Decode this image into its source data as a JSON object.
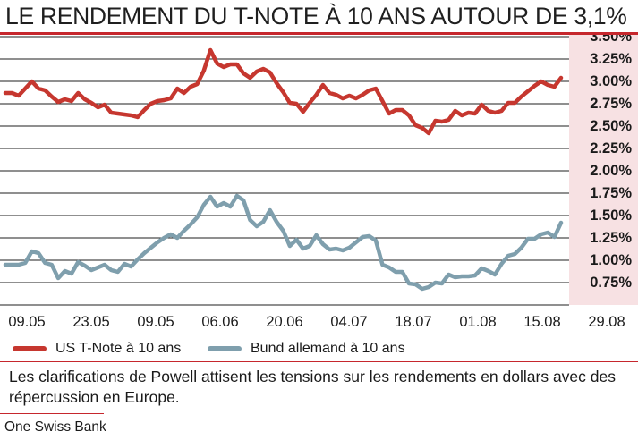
{
  "title": "LE RENDEMENT DU T-NOTE À 10 ANS AUTOUR DE 3,1%",
  "caption": "Les clarifications de Powell attisent les tensions sur les rendements en dollars avec des répercussion en Europe.",
  "source": "One Swiss Bank",
  "colors": {
    "accent": "#c6272d",
    "us": "#c6372f",
    "bund": "#7f9fad",
    "axis_band": "#f7e1e3"
  },
  "chart_data": {
    "type": "line",
    "ylim": [
      0.5,
      3.7
    ],
    "y_ticks": [
      0.75,
      1.0,
      1.25,
      1.5,
      1.75,
      2.0,
      2.25,
      2.5,
      2.75,
      3.0,
      3.25,
      3.5
    ],
    "y_tick_labels": [
      "0.75%",
      "1.00%",
      "1.25%",
      "1.50%",
      "1.75%",
      "2.00%",
      "2.25%",
      "2.50%",
      "2.75%",
      "3.00%",
      "3.25%",
      "3.50%"
    ],
    "grid": true,
    "legend_position": "bottom-left",
    "x_tick_labels": [
      "09.05",
      "23.05",
      "09.05",
      "06.06",
      "20.06",
      "04.07",
      "18.07",
      "01.08",
      "15.08",
      "29.08"
    ],
    "series": [
      {
        "name": "US T-Note à 10 ans",
        "values": [
          2.87,
          2.87,
          2.84,
          2.92,
          3.0,
          2.92,
          2.9,
          2.83,
          2.77,
          2.8,
          2.78,
          2.87,
          2.8,
          2.76,
          2.71,
          2.74,
          2.65,
          2.64,
          2.63,
          2.62,
          2.6,
          2.68,
          2.75,
          2.78,
          2.79,
          2.81,
          2.92,
          2.87,
          2.94,
          2.97,
          3.12,
          3.35,
          3.2,
          3.16,
          3.19,
          3.19,
          3.09,
          3.04,
          3.11,
          3.14,
          3.1,
          2.98,
          2.88,
          2.76,
          2.75,
          2.66,
          2.76,
          2.85,
          2.96,
          2.87,
          2.85,
          2.81,
          2.84,
          2.81,
          2.85,
          2.9,
          2.92,
          2.78,
          2.64,
          2.68,
          2.68,
          2.62,
          2.51,
          2.48,
          2.42,
          2.56,
          2.55,
          2.57,
          2.67,
          2.62,
          2.65,
          2.64,
          2.74,
          2.67,
          2.65,
          2.67,
          2.76,
          2.76,
          2.83,
          2.89,
          2.95,
          3.0,
          2.96,
          2.94,
          3.04
        ]
      },
      {
        "name": "Bund allemand à 10 ans",
        "values": [
          0.95,
          0.95,
          0.95,
          0.97,
          1.1,
          1.08,
          0.97,
          0.95,
          0.8,
          0.88,
          0.85,
          0.98,
          0.94,
          0.89,
          0.92,
          0.95,
          0.89,
          0.87,
          0.96,
          0.93,
          1.01,
          1.08,
          1.14,
          1.2,
          1.25,
          1.29,
          1.25,
          1.33,
          1.4,
          1.48,
          1.62,
          1.71,
          1.6,
          1.64,
          1.6,
          1.72,
          1.67,
          1.45,
          1.38,
          1.43,
          1.56,
          1.43,
          1.33,
          1.16,
          1.23,
          1.13,
          1.16,
          1.28,
          1.18,
          1.12,
          1.13,
          1.11,
          1.14,
          1.2,
          1.26,
          1.27,
          1.22,
          0.95,
          0.92,
          0.87,
          0.87,
          0.74,
          0.73,
          0.68,
          0.7,
          0.75,
          0.74,
          0.84,
          0.81,
          0.82,
          0.82,
          0.83,
          0.91,
          0.88,
          0.84,
          0.96,
          1.05,
          1.07,
          1.14,
          1.24,
          1.24,
          1.29,
          1.31,
          1.26,
          1.42
        ]
      }
    ]
  }
}
